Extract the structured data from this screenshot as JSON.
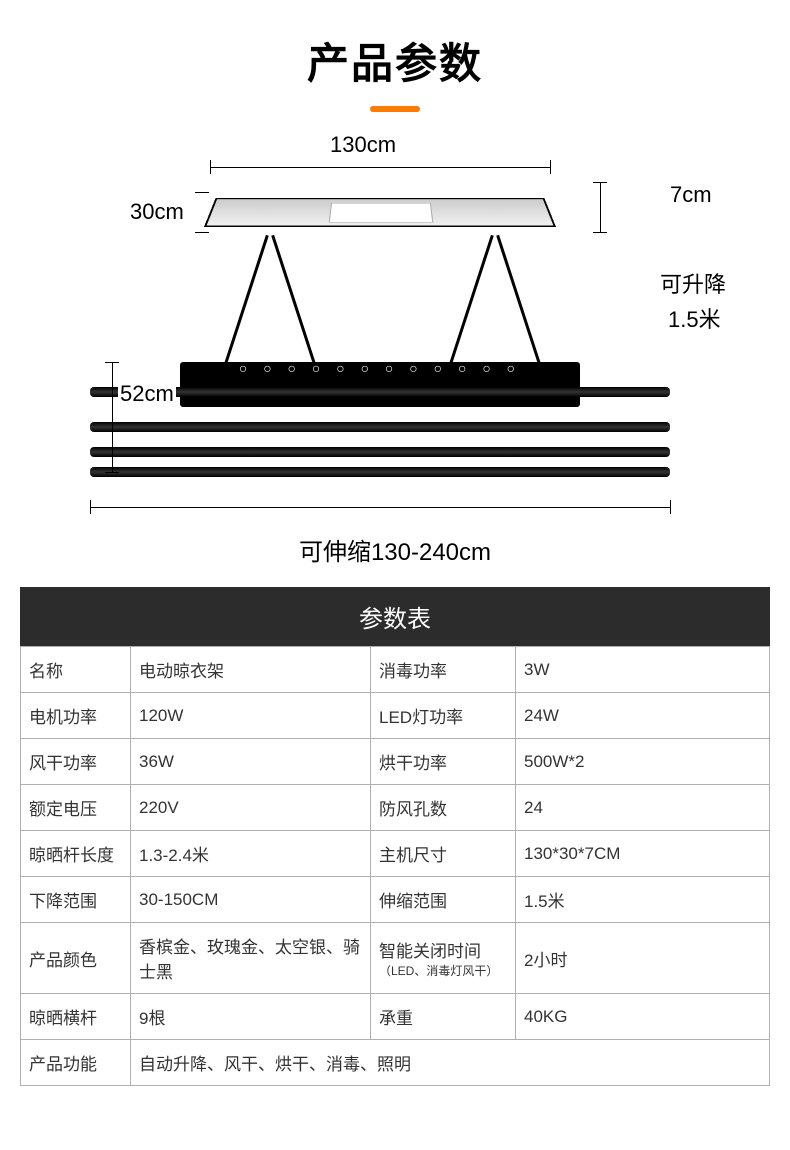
{
  "title": "产品参数",
  "colors": {
    "accent": "#ff7a00",
    "tableHeaderBg": "#2c2c2c",
    "tableBorder": "#b0b0b0",
    "text": "#000000"
  },
  "diagram": {
    "top_width": "130cm",
    "depth": "30cm",
    "side_width": "52cm",
    "thickness": "7cm",
    "lift_label": "可升降",
    "lift_value": "1.5米",
    "extend_label": "可伸缩130-240cm"
  },
  "specs": {
    "header": "参数表",
    "rows": [
      {
        "l1": "名称",
        "v1": "电动晾衣架",
        "l2": "消毒功率",
        "v2": "3W"
      },
      {
        "l1": "电机功率",
        "v1": "120W",
        "l2": "LED灯功率",
        "v2": "24W"
      },
      {
        "l1": "风干功率",
        "v1": "36W",
        "l2": "烘干功率",
        "v2": "500W*2"
      },
      {
        "l1": "额定电压",
        "v1": "220V",
        "l2": "防风孔数",
        "v2": "24"
      },
      {
        "l1": "晾晒杆长度",
        "v1": "1.3-2.4米",
        "l2": "主机尺寸",
        "v2": "130*30*7CM"
      },
      {
        "l1": "下降范围",
        "v1": "30-150CM",
        "l2": "伸缩范围",
        "v2": "1.5米"
      },
      {
        "l1": "产品颜色",
        "v1": "香槟金、玫瑰金、太空银、骑士黑",
        "l2": "智能关闭时间",
        "l2sub": "（LED、消毒灯风干）",
        "v2": "2小时"
      },
      {
        "l1": "晾晒横杆",
        "v1": "9根",
        "l2": "承重",
        "v2": "40KG"
      }
    ],
    "last_row": {
      "l1": "产品功能",
      "v1": "自动升降、风干、烘干、消毒、照明"
    }
  }
}
